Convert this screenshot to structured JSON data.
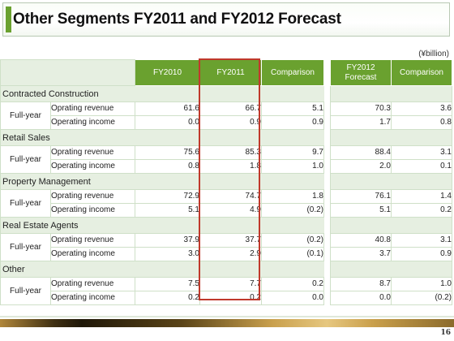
{
  "title": "Other Segments FY2011 and FY2012 Forecast",
  "unit": "(¥billion)",
  "columns": {
    "blank": "",
    "fy2010": "FY2010",
    "fy2011": "FY2011",
    "comparison": "Comparison",
    "fy2012_forecast": "FY2012 Forecast",
    "comparison2": "Comparison"
  },
  "period_label": "Full-year",
  "metrics": {
    "revenue": "Oprating revenue",
    "income": "Operating income"
  },
  "segments": [
    {
      "name": "Contracted Construction",
      "revenue": {
        "fy2010": "61.6",
        "fy2011": "66.7",
        "comparison": "5.1",
        "fy2012": "70.3",
        "comparison2": "3.6"
      },
      "income": {
        "fy2010": "0.0",
        "fy2011": "0.9",
        "comparison": "0.9",
        "fy2012": "1.7",
        "comparison2": "0.8"
      }
    },
    {
      "name": "Retail Sales",
      "revenue": {
        "fy2010": "75.6",
        "fy2011": "85.3",
        "comparison": "9.7",
        "fy2012": "88.4",
        "comparison2": "3.1"
      },
      "income": {
        "fy2010": "0.8",
        "fy2011": "1.8",
        "comparison": "1.0",
        "fy2012": "2.0",
        "comparison2": "0.1"
      }
    },
    {
      "name": "Property Management",
      "revenue": {
        "fy2010": "72.9",
        "fy2011": "74.7",
        "comparison": "1.8",
        "fy2012": "76.1",
        "comparison2": "1.4"
      },
      "income": {
        "fy2010": "5.1",
        "fy2011": "4.9",
        "comparison": "(0.2)",
        "fy2012": "5.1",
        "comparison2": "0.2"
      }
    },
    {
      "name": "Real Estate Agents",
      "revenue": {
        "fy2010": "37.9",
        "fy2011": "37.7",
        "comparison": "(0.2)",
        "fy2012": "40.8",
        "comparison2": "3.1"
      },
      "income": {
        "fy2010": "3.0",
        "fy2011": "2.9",
        "comparison": "(0.1)",
        "fy2012": "3.7",
        "comparison2": "0.9"
      }
    },
    {
      "name": "Other",
      "revenue": {
        "fy2010": "7.5",
        "fy2011": "7.7",
        "comparison": "0.2",
        "fy2012": "8.7",
        "comparison2": "1.0"
      },
      "income": {
        "fy2010": "0.2",
        "fy2011": "0.2",
        "comparison": "0.0",
        "fy2012": "0.0",
        "comparison2": "(0.2)"
      }
    }
  ],
  "page_number": "16",
  "colors": {
    "header_green": "#6aa12f",
    "segment_band": "#e6efe1",
    "highlight_red": "#c0392b"
  }
}
